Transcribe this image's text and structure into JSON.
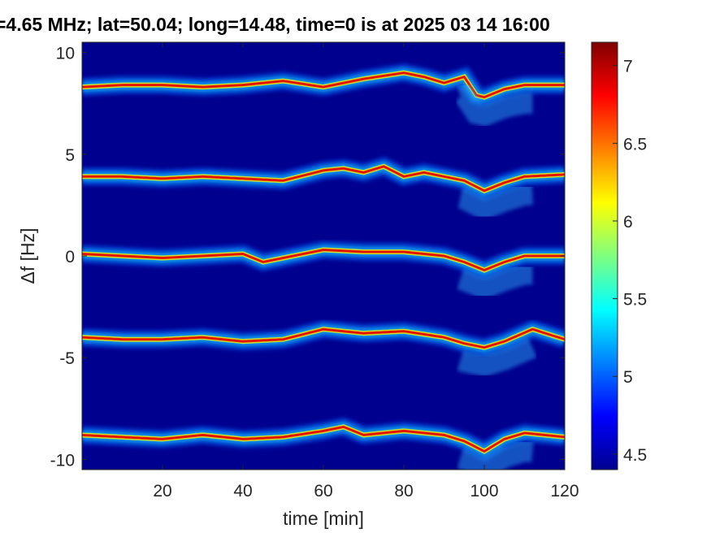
{
  "chart_data": {
    "type": "heatmap",
    "title": "=4.65 MHz;  lat=50.04; long=14.48, time=0 is at 2025 03 14 16:00",
    "xlabel": "time [min]",
    "ylabel": "Δf [Hz]",
    "xlim": [
      0,
      120
    ],
    "ylim": [
      -10.5,
      10.5
    ],
    "x_ticks": [
      20,
      40,
      60,
      80,
      100,
      120
    ],
    "y_ticks": [
      10,
      5,
      0,
      -5,
      -10
    ],
    "colorbar": {
      "range": [
        4.4,
        7.15
      ],
      "ticks": [
        7,
        6.5,
        6,
        5.5,
        5,
        4.5
      ],
      "colormap": "jet"
    },
    "background_color": "#00008f",
    "traces": [
      {
        "base": 8.3,
        "points": [
          [
            0,
            8.3
          ],
          [
            10,
            8.4
          ],
          [
            20,
            8.4
          ],
          [
            30,
            8.3
          ],
          [
            40,
            8.4
          ],
          [
            50,
            8.6
          ],
          [
            60,
            8.3
          ],
          [
            70,
            8.7
          ],
          [
            80,
            9.0
          ],
          [
            85,
            8.8
          ],
          [
            90,
            8.5
          ],
          [
            95,
            8.8
          ],
          [
            98,
            7.9
          ],
          [
            100,
            7.8
          ],
          [
            105,
            8.2
          ],
          [
            110,
            8.4
          ],
          [
            120,
            8.4
          ]
        ]
      },
      {
        "base": 4.0,
        "points": [
          [
            0,
            3.9
          ],
          [
            10,
            3.9
          ],
          [
            20,
            3.8
          ],
          [
            30,
            3.9
          ],
          [
            40,
            3.8
          ],
          [
            50,
            3.7
          ],
          [
            60,
            4.2
          ],
          [
            65,
            4.3
          ],
          [
            70,
            4.1
          ],
          [
            75,
            4.4
          ],
          [
            80,
            3.9
          ],
          [
            85,
            4.1
          ],
          [
            90,
            3.9
          ],
          [
            95,
            3.7
          ],
          [
            100,
            3.2
          ],
          [
            105,
            3.6
          ],
          [
            110,
            3.9
          ],
          [
            120,
            4.0
          ]
        ]
      },
      {
        "base": 0.0,
        "points": [
          [
            0,
            0.1
          ],
          [
            10,
            0.0
          ],
          [
            20,
            -0.1
          ],
          [
            30,
            0.0
          ],
          [
            40,
            0.1
          ],
          [
            45,
            -0.3
          ],
          [
            50,
            -0.1
          ],
          [
            60,
            0.3
          ],
          [
            70,
            0.2
          ],
          [
            80,
            0.2
          ],
          [
            90,
            0.0
          ],
          [
            95,
            -0.3
          ],
          [
            100,
            -0.7
          ],
          [
            105,
            -0.3
          ],
          [
            110,
            0.0
          ],
          [
            120,
            0.0
          ]
        ]
      },
      {
        "base": -4.0,
        "points": [
          [
            0,
            -4.0
          ],
          [
            10,
            -4.1
          ],
          [
            20,
            -4.1
          ],
          [
            30,
            -4.0
          ],
          [
            40,
            -4.2
          ],
          [
            50,
            -4.1
          ],
          [
            60,
            -3.6
          ],
          [
            70,
            -3.8
          ],
          [
            80,
            -3.7
          ],
          [
            90,
            -4.0
          ],
          [
            95,
            -4.3
          ],
          [
            100,
            -4.5
          ],
          [
            105,
            -4.2
          ],
          [
            112,
            -3.6
          ],
          [
            120,
            -4.1
          ]
        ]
      },
      {
        "base": -8.8,
        "points": [
          [
            0,
            -8.8
          ],
          [
            10,
            -8.9
          ],
          [
            20,
            -9.0
          ],
          [
            30,
            -8.8
          ],
          [
            40,
            -9.0
          ],
          [
            50,
            -8.9
          ],
          [
            60,
            -8.6
          ],
          [
            65,
            -8.4
          ],
          [
            70,
            -8.8
          ],
          [
            80,
            -8.6
          ],
          [
            90,
            -8.8
          ],
          [
            95,
            -9.1
          ],
          [
            100,
            -9.6
          ],
          [
            105,
            -9.0
          ],
          [
            110,
            -8.7
          ],
          [
            120,
            -8.9
          ]
        ]
      }
    ]
  }
}
